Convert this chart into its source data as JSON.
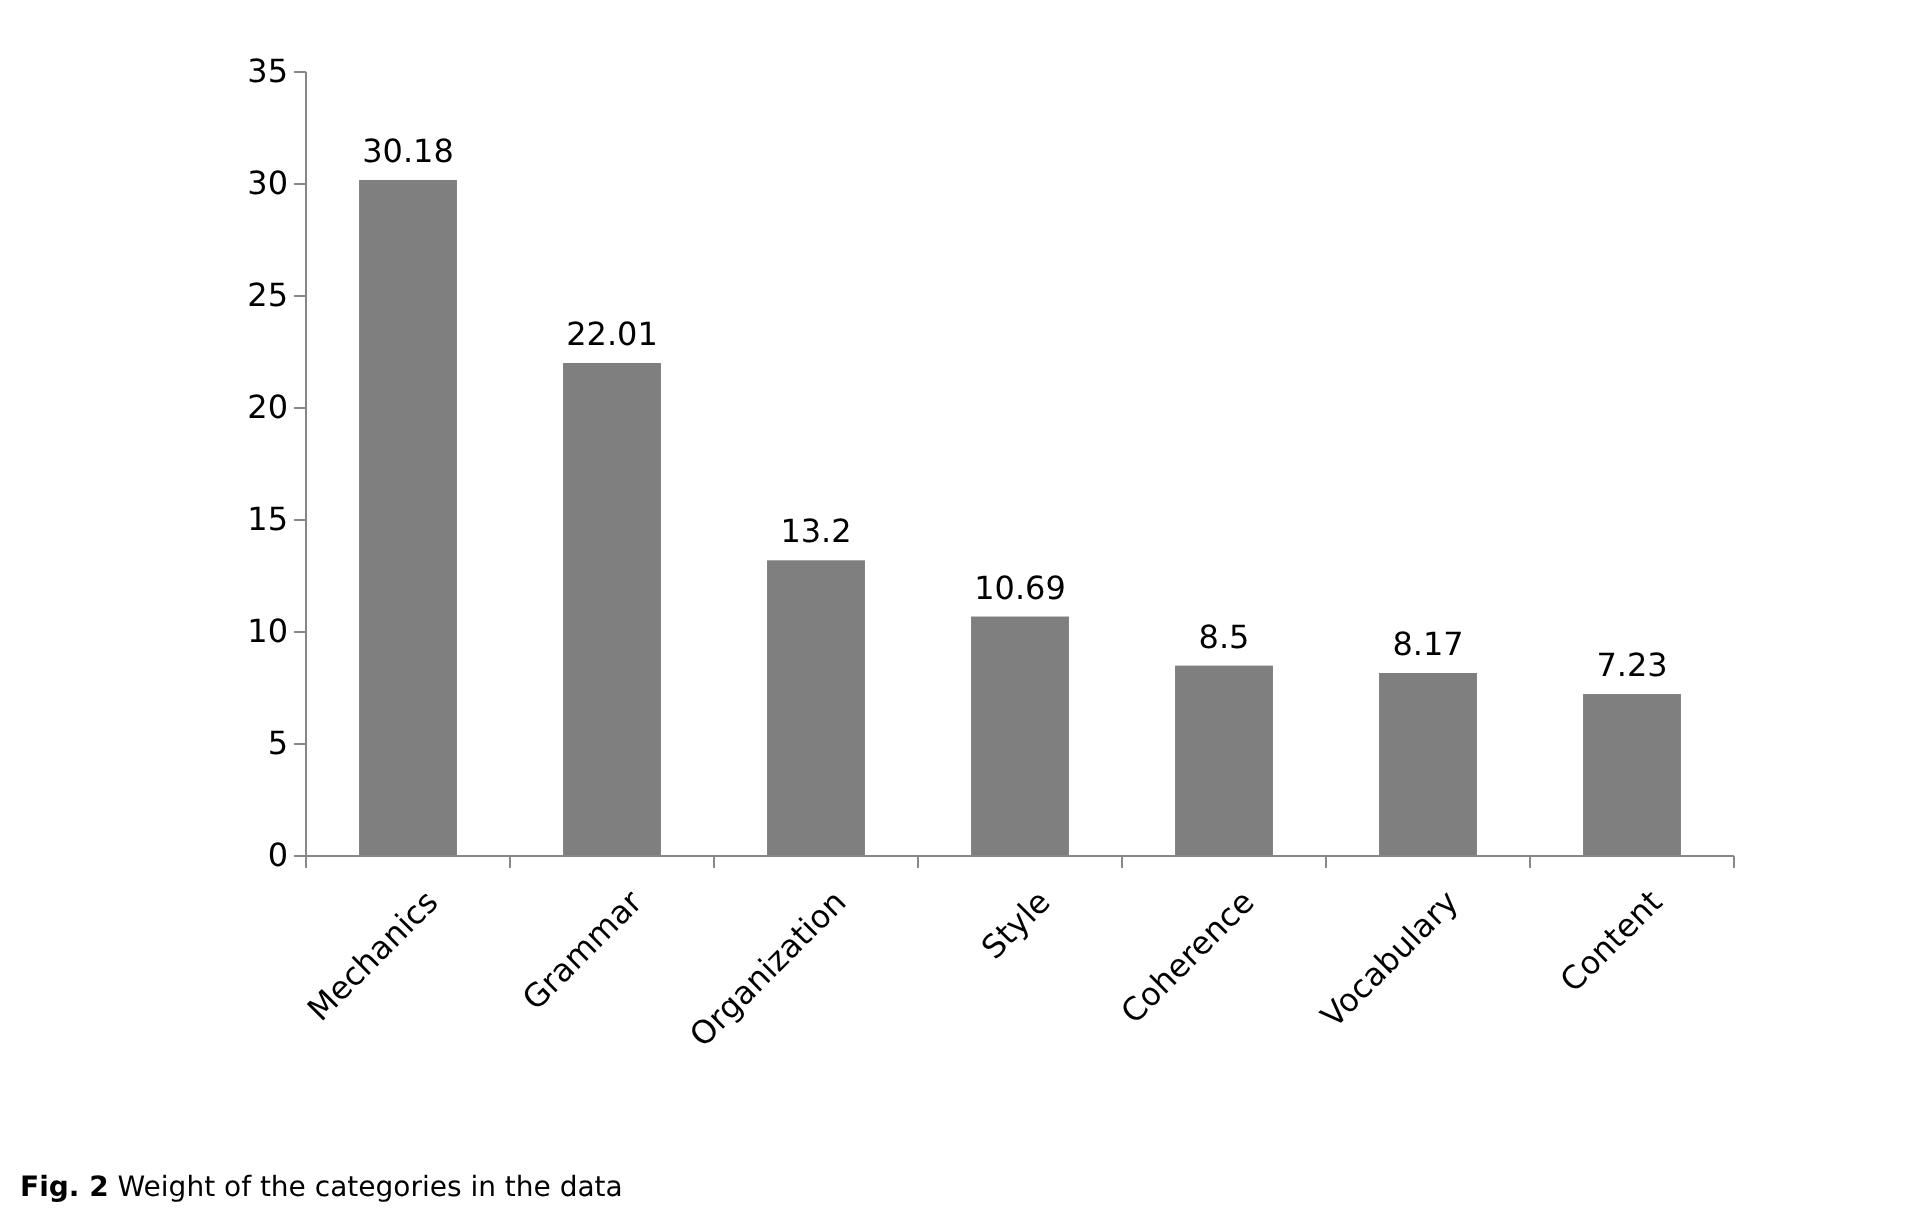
{
  "chart_data": {
    "type": "bar",
    "categories": [
      "Mechanics",
      "Grammar",
      "Organization",
      "Style",
      "Coherence",
      "Vocabulary",
      "Content"
    ],
    "values": [
      30.18,
      22.01,
      13.2,
      10.69,
      8.5,
      8.17,
      7.23
    ],
    "color": "#7f7f7f",
    "ylim": [
      0,
      35
    ],
    "yticks": [
      0,
      5,
      10,
      15,
      20,
      25,
      30,
      35
    ],
    "data_labels": true,
    "annotations": [
      "Fig. 2 Weight of the categories in the data"
    ]
  }
}
